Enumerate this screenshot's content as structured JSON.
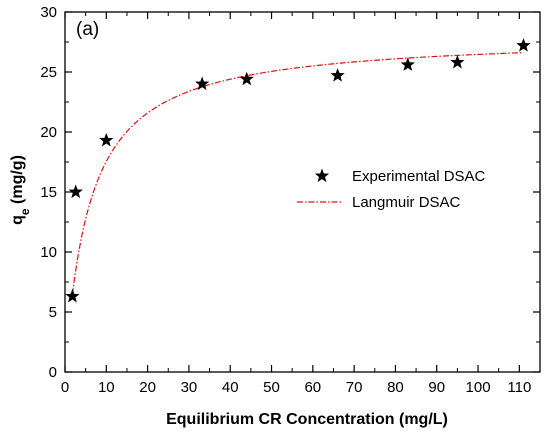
{
  "chart_data": {
    "type": "scatter",
    "panel_label": "(a)",
    "xlabel": "Equilibrium CR Concentration (mg/L)",
    "ylabel_main": "q",
    "ylabel_sub": "e",
    "ylabel_unit": " (mg/g)",
    "xlim": [
      0,
      115
    ],
    "ylim": [
      0,
      30
    ],
    "xticks": [
      0,
      10,
      20,
      30,
      40,
      50,
      60,
      70,
      80,
      90,
      100,
      110
    ],
    "yticks": [
      0,
      5,
      10,
      15,
      20,
      25,
      30
    ],
    "legend_position": "middle-right",
    "series": [
      {
        "name": "Experimental DSAC",
        "kind": "markers",
        "marker": "star",
        "color": "#000000",
        "x": [
          1.8,
          2.6,
          10.0,
          33.2,
          44.0,
          66.0,
          83.0,
          95.0,
          111.0
        ],
        "y": [
          6.3,
          15.0,
          19.3,
          24.0,
          24.4,
          24.7,
          25.6,
          25.8,
          27.2
        ]
      },
      {
        "name": "Langmuir DSAC",
        "kind": "line",
        "style": "dash-dot",
        "color": "#e01010",
        "model": "langmuir",
        "qmax": 28.05,
        "KL": 0.167,
        "x_range": [
          1.8,
          111.0
        ]
      }
    ]
  }
}
